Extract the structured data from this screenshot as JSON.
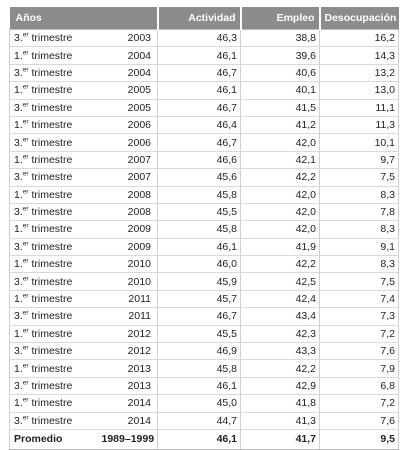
{
  "header": {
    "years": "Años",
    "activity": "Actividad",
    "employment": "Empleo",
    "unemployment": "Desocupación"
  },
  "rows": [
    {
      "period": "3.er trimestre",
      "year": "2003",
      "activity": "46,3",
      "employment": "38,8",
      "unemployment": "16,2"
    },
    {
      "period": "1.er trimestre",
      "year": "2004",
      "activity": "46,1",
      "employment": "39,6",
      "unemployment": "14,3"
    },
    {
      "period": "3.er trimestre",
      "year": "2004",
      "activity": "46,7",
      "employment": "40,6",
      "unemployment": "13,2"
    },
    {
      "period": "1.er trimestre",
      "year": "2005",
      "activity": "46,1",
      "employment": "40,1",
      "unemployment": "13,0"
    },
    {
      "period": "3.er trimestre",
      "year": "2005",
      "activity": "46,7",
      "employment": "41,5",
      "unemployment": "11,1"
    },
    {
      "period": "1.er trimestre",
      "year": "2006",
      "activity": "46,4",
      "employment": "41,2",
      "unemployment": "11,3"
    },
    {
      "period": "3.er trimestre",
      "year": "2006",
      "activity": "46,7",
      "employment": "42,0",
      "unemployment": "10,1"
    },
    {
      "period": "1.er trimestre",
      "year": "2007",
      "activity": "46,6",
      "employment": "42,1",
      "unemployment": "9,7"
    },
    {
      "period": "3.er trimestre",
      "year": "2007",
      "activity": "45,6",
      "employment": "42,2",
      "unemployment": "7,5"
    },
    {
      "period": "1.er trimestre",
      "year": "2008",
      "activity": "45,8",
      "employment": "42,0",
      "unemployment": "8,3"
    },
    {
      "period": "3.er trimestre",
      "year": "2008",
      "activity": "45,5",
      "employment": "42,0",
      "unemployment": "7,8"
    },
    {
      "period": "1.er trimestre",
      "year": "2009",
      "activity": "45,8",
      "employment": "42,0",
      "unemployment": "8,3"
    },
    {
      "period": "3.er trimestre",
      "year": "2009",
      "activity": "46,1",
      "employment": "41,9",
      "unemployment": "9,1"
    },
    {
      "period": "1.er trimestre",
      "year": "2010",
      "activity": "46,0",
      "employment": "42,2",
      "unemployment": "8,3"
    },
    {
      "period": "3.er trimestre",
      "year": "2010",
      "activity": "45,9",
      "employment": "42,5",
      "unemployment": "7,5"
    },
    {
      "period": "1.er trimestre",
      "year": "2011",
      "activity": "45,7",
      "employment": "42,4",
      "unemployment": "7,4"
    },
    {
      "period": "3.er trimestre",
      "year": "2011",
      "activity": "46,7",
      "employment": "43,4",
      "unemployment": "7,3"
    },
    {
      "period": "1.er trimestre",
      "year": "2012",
      "activity": "45,5",
      "employment": "42,3",
      "unemployment": "7,2"
    },
    {
      "period": "3.er trimestre",
      "year": "2012",
      "activity": "46,9",
      "employment": "43,3",
      "unemployment": "7,6"
    },
    {
      "period": "1.er trimestre",
      "year": "2013",
      "activity": "45,8",
      "employment": "42,2",
      "unemployment": "7,9"
    },
    {
      "period": "3.er trimestre",
      "year": "2013",
      "activity": "46,1",
      "employment": "42,9",
      "unemployment": "6,8"
    },
    {
      "period": "1.er trimestre",
      "year": "2014",
      "activity": "45,0",
      "employment": "41,8",
      "unemployment": "7,2"
    },
    {
      "period": "3.er trimestre",
      "year": "2014",
      "activity": "44,7",
      "employment": "41,3",
      "unemployment": "7,6"
    }
  ],
  "average": {
    "label": "Promedio",
    "range": "1989–1999",
    "activity": "46,1",
    "employment": "41,7",
    "unemployment": "9,5"
  }
}
